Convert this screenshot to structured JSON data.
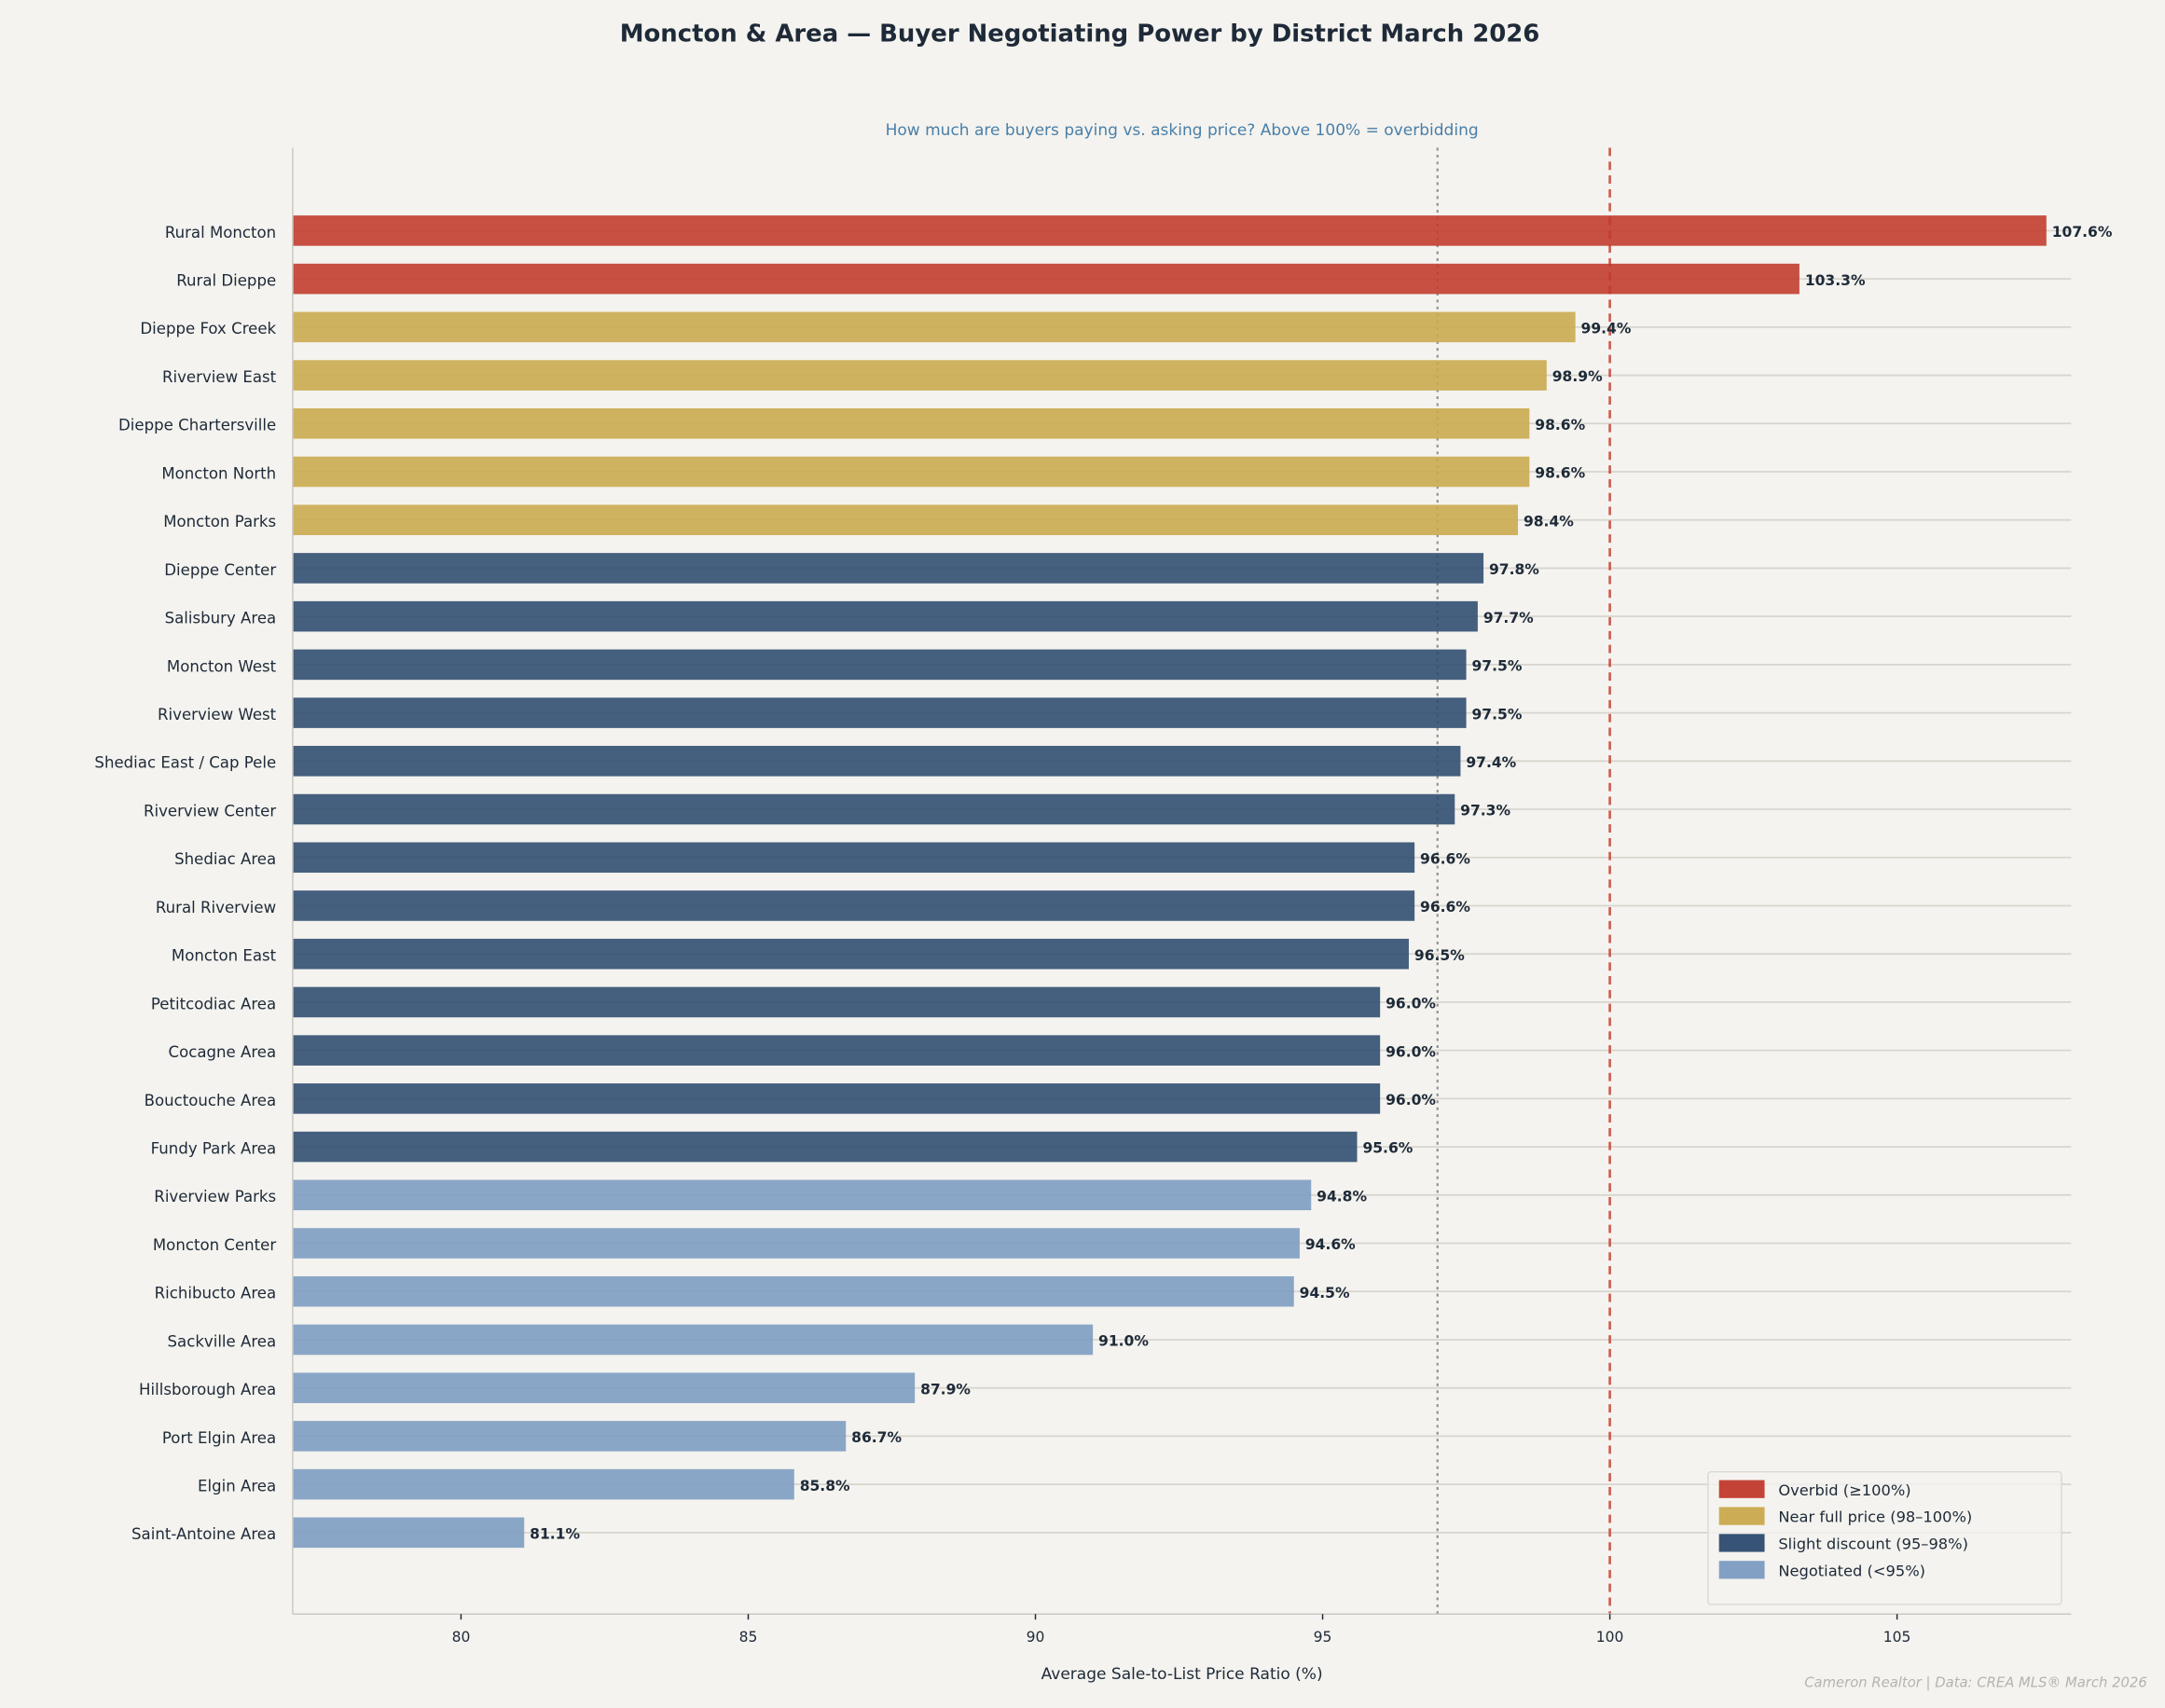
{
  "chart_data": {
    "type": "bar",
    "orientation": "horizontal",
    "title": "Moncton & Area — Buyer Negotiating Power by District  March 2026",
    "subtitle": "How much are buyers paying vs. asking price? Above 100% = overbidding",
    "xlabel": "Average Sale-to-List Price Ratio (%)",
    "ylabel": "",
    "xlim": [
      77.07,
      108.03
    ],
    "xticks": [
      80,
      85,
      90,
      95,
      100,
      105
    ],
    "grid": "horizontal lines per category",
    "reference_lines": [
      {
        "value": 100,
        "style": "dashed",
        "color": "#c0392b"
      },
      {
        "value": 97.0,
        "style": "dotted",
        "color": "#888888"
      }
    ],
    "categories": [
      "Rural Moncton",
      "Rural Dieppe",
      "Dieppe Fox Creek",
      "Riverview East",
      "Dieppe Chartersville",
      "Moncton North",
      "Moncton Parks",
      "Dieppe Center",
      "Salisbury Area",
      "Moncton West",
      "Riverview West",
      "Shediac East / Cap Pele",
      "Riverview Center",
      "Shediac Area",
      "Rural Riverview",
      "Moncton East",
      "Petitcodiac Area",
      "Cocagne Area",
      "Bouctouche Area",
      "Fundy Park Area",
      "Riverview Parks",
      "Moncton Center",
      "Richibucto Area",
      "Sackville Area",
      "Hillsborough Area",
      "Port Elgin Area",
      "Elgin Area",
      "Saint-Antoine Area"
    ],
    "values": [
      107.6,
      103.3,
      99.4,
      98.9,
      98.6,
      98.6,
      98.4,
      97.8,
      97.7,
      97.5,
      97.5,
      97.4,
      97.3,
      96.6,
      96.6,
      96.5,
      96.0,
      96.0,
      96.0,
      95.6,
      94.8,
      94.6,
      94.5,
      91.0,
      87.9,
      86.7,
      85.8,
      81.1
    ],
    "data_labels": [
      "107.6%",
      "103.3%",
      "99.4%",
      "98.9%",
      "98.6%",
      "98.6%",
      "98.4%",
      "97.8%",
      "97.7%",
      "97.5%",
      "97.5%",
      "97.4%",
      "97.3%",
      "96.6%",
      "96.6%",
      "96.5%",
      "96.0%",
      "96.0%",
      "96.0%",
      "95.6%",
      "94.8%",
      "94.6%",
      "94.5%",
      "91.0%",
      "87.9%",
      "86.7%",
      "85.8%",
      "81.1%"
    ],
    "legend_position": "bottom-right",
    "legend": [
      {
        "label": "Overbid  (≥100%)",
        "color": "#c0392b"
      },
      {
        "label": "Near full price  (98–100%)",
        "color": "#c9a84c"
      },
      {
        "label": "Slight discount  (95–98%)",
        "color": "#2c4a6e"
      },
      {
        "label": "Negotiated  (<95%)",
        "color": "#7b9bc0"
      }
    ],
    "footer": "Cameron Realtor  |  Data: CREA MLS® March 2026"
  }
}
